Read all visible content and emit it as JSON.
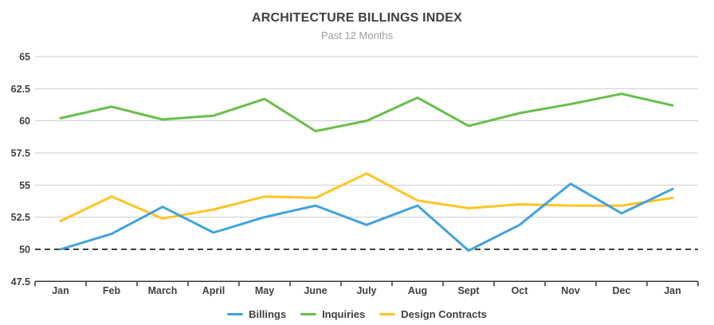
{
  "header": {
    "title": "ARCHITECTURE BILLINGS INDEX",
    "subtitle": "Past 12 Months"
  },
  "chart_data": {
    "type": "line",
    "categories": [
      "Jan",
      "Feb",
      "March",
      "April",
      "May",
      "June",
      "July",
      "Aug",
      "Sept",
      "Oct",
      "Nov",
      "Dec",
      "Jan"
    ],
    "series": [
      {
        "name": "Billings",
        "color": "#41a2dc",
        "values": [
          50.0,
          51.2,
          53.3,
          51.3,
          52.5,
          53.4,
          51.9,
          53.4,
          49.9,
          51.9,
          55.1,
          52.8,
          54.7
        ]
      },
      {
        "name": "Inquiries",
        "color": "#69be4a",
        "values": [
          60.2,
          61.1,
          60.1,
          60.4,
          61.7,
          59.2,
          60.0,
          61.8,
          59.6,
          60.6,
          61.3,
          62.1,
          61.2
        ]
      },
      {
        "name": "Design Contracts",
        "color": "#ffc425",
        "values": [
          52.2,
          54.1,
          52.4,
          53.1,
          54.1,
          54.0,
          55.9,
          53.8,
          53.2,
          53.5,
          53.4,
          53.4,
          54.0
        ]
      }
    ],
    "ylim": [
      47.5,
      65
    ],
    "yticks": [
      47.5,
      50,
      52.5,
      55,
      57.5,
      60,
      62.5,
      65
    ],
    "baseline": 50,
    "grid": true,
    "legend_position": "bottom",
    "colors": {
      "gridline": "#cdcdcd",
      "baseline": "#000000",
      "axis": "#383838",
      "tick_label": "#3f3f3f"
    }
  }
}
